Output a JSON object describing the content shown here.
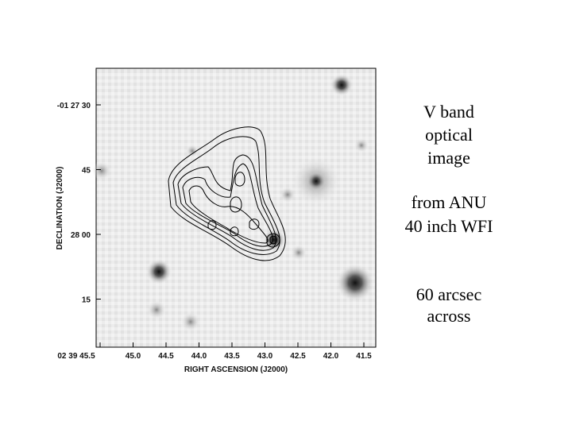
{
  "figure": {
    "y_axis_label": "DECLINATION (J2000)",
    "x_axis_label": "RIGHT ASCENSION (J2000)",
    "y_ticks": [
      "-01 27 30",
      "45",
      "28 00",
      "15"
    ],
    "x_ticks": [
      "02 39 45.5",
      "45.0",
      "44.5",
      "44.0",
      "43.5",
      "43.0",
      "42.5",
      "42.0",
      "41.5"
    ]
  },
  "caption": {
    "block_1": [
      "V band",
      "optical",
      "image"
    ],
    "block_2": [
      "from ANU",
      "40 inch WFI"
    ],
    "block_3": [
      "60 arcsec",
      "across"
    ]
  }
}
